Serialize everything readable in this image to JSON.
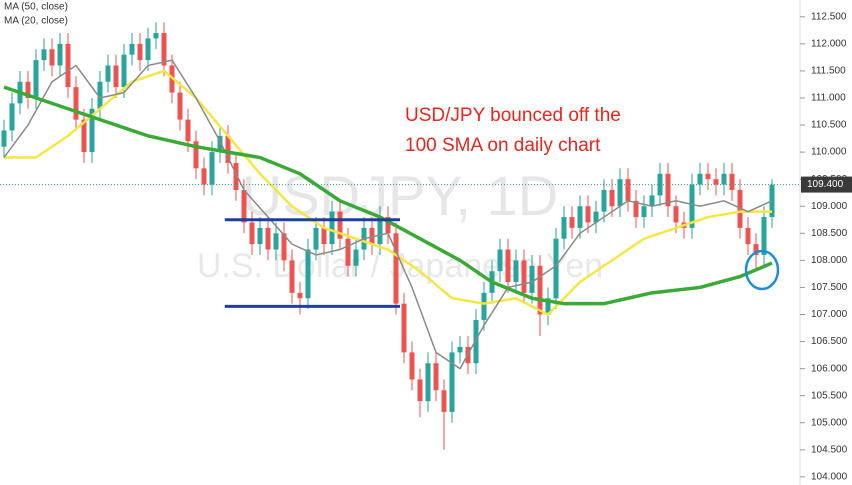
{
  "chart_data": {
    "type": "candlestick",
    "watermark_title": "USDJPY, 1D",
    "watermark_subtitle": "U.S. Dollar / Japanese Yen",
    "annotation": [
      "USD/JPY bounced off the",
      "100 SMA on daily chart"
    ],
    "up_color": "#26a69a",
    "down_color": "#ef5350",
    "xlim": [
      -0.5,
      99.5
    ],
    "ylim": [
      103.85,
      112.81
    ],
    "yticks": [
      {
        "value": 104,
        "label": "104.000"
      },
      {
        "value": 104.5,
        "label": "104.500"
      },
      {
        "value": 105,
        "label": "105.000"
      },
      {
        "value": 105.5,
        "label": "105.500"
      },
      {
        "value": 106,
        "label": "106.000"
      },
      {
        "value": 106.5,
        "label": "106.500"
      },
      {
        "value": 107,
        "label": "107.000"
      },
      {
        "value": 107.5,
        "label": "107.500"
      },
      {
        "value": 108,
        "label": "108.000"
      },
      {
        "value": 108.5,
        "label": "108.500"
      },
      {
        "value": 109,
        "label": "109.000"
      },
      {
        "value": 109.5,
        "label": "109.500"
      },
      {
        "value": 110,
        "label": "110.000"
      },
      {
        "value": 110.5,
        "label": "110.500"
      },
      {
        "value": 111,
        "label": "111.000"
      },
      {
        "value": 111.5,
        "label": "111.500"
      },
      {
        "value": 112,
        "label": "112.000"
      },
      {
        "value": 112.5,
        "label": "112.500"
      }
    ],
    "price_line": 109.4,
    "price_label": "109.400",
    "open": [
      110.1,
      110.4,
      110.9,
      111.3,
      111.0,
      111.7,
      111.9,
      111.6,
      112.0,
      111.2,
      110.6,
      110.0,
      110.8,
      111.3,
      111.6,
      111.2,
      111.8,
      112.0,
      111.7,
      112.1,
      112.2,
      111.6,
      111.1,
      110.6,
      110.2,
      109.7,
      109.4,
      110.0,
      110.3,
      109.8,
      109.3,
      108.7,
      108.3,
      108.6,
      108.2,
      108.5,
      108.0,
      107.4,
      107.3,
      108.2,
      108.6,
      108.3,
      108.9,
      108.4,
      107.9,
      108.2,
      108.6,
      108.3,
      108.8,
      108.5,
      107.2,
      106.3,
      105.8,
      105.4,
      106.1,
      105.6,
      105.2,
      106.3,
      106.4,
      106.1,
      106.9,
      107.4,
      107.8,
      108.2,
      107.6,
      108.0,
      107.4,
      107.9,
      107.0,
      107.3,
      108.4,
      108.8,
      108.6,
      109.0,
      108.7,
      108.9,
      109.3,
      109.0,
      109.5,
      109.1,
      108.8,
      109.0,
      109.2,
      109.6,
      109.0,
      108.7,
      108.6,
      109.4,
      109.6,
      109.5,
      109.4,
      109.6,
      109.3,
      108.6,
      108.3,
      108.1,
      108.8
    ],
    "high": [
      110.6,
      111.1,
      111.5,
      111.5,
      111.9,
      112.1,
      112.1,
      112.2,
      112.2,
      111.4,
      110.8,
      111.0,
      111.5,
      111.8,
      111.8,
      112.0,
      112.2,
      112.2,
      112.3,
      112.4,
      112.4,
      111.8,
      111.3,
      110.8,
      110.4,
      109.9,
      110.2,
      110.5,
      110.5,
      110.0,
      109.5,
      108.9,
      108.8,
      108.8,
      108.7,
      108.7,
      108.2,
      107.6,
      108.4,
      108.8,
      108.8,
      109.1,
      109.1,
      108.6,
      108.4,
      108.8,
      108.8,
      109.0,
      109.0,
      108.7,
      107.4,
      106.5,
      106.0,
      106.3,
      106.3,
      105.8,
      106.5,
      106.6,
      106.6,
      107.1,
      107.6,
      108.0,
      108.4,
      108.4,
      108.2,
      108.2,
      108.1,
      108.1,
      107.5,
      108.6,
      109.0,
      109.0,
      109.2,
      109.2,
      109.1,
      109.5,
      109.5,
      109.7,
      109.7,
      109.3,
      109.2,
      109.4,
      109.8,
      109.8,
      109.2,
      108.9,
      109.6,
      109.8,
      109.8,
      109.7,
      109.8,
      109.8,
      109.5,
      108.8,
      108.5,
      109.0,
      109.5
    ],
    "low": [
      109.9,
      110.2,
      110.7,
      110.8,
      110.8,
      111.5,
      111.4,
      111.4,
      111.0,
      110.4,
      109.8,
      109.8,
      110.6,
      111.1,
      111.0,
      111.0,
      111.6,
      111.5,
      111.5,
      111.9,
      111.4,
      110.9,
      110.4,
      110.0,
      109.5,
      109.2,
      109.2,
      109.8,
      109.6,
      109.1,
      108.5,
      108.1,
      108.1,
      108.0,
      108.0,
      107.8,
      107.2,
      107.0,
      107.1,
      108.0,
      108.1,
      108.1,
      108.2,
      107.7,
      107.7,
      108.0,
      108.1,
      108.1,
      108.3,
      107.0,
      106.1,
      105.6,
      105.1,
      105.2,
      105.4,
      104.5,
      105.0,
      106.1,
      105.9,
      105.9,
      106.7,
      107.2,
      107.6,
      107.4,
      107.4,
      107.2,
      107.2,
      106.6,
      106.8,
      107.1,
      108.2,
      108.4,
      108.4,
      108.5,
      108.5,
      108.7,
      108.8,
      108.8,
      108.9,
      108.6,
      108.6,
      108.8,
      109.0,
      108.8,
      108.5,
      108.4,
      108.4,
      109.2,
      109.3,
      109.2,
      109.2,
      109.1,
      108.4,
      108.1,
      107.8,
      107.9,
      108.6
    ],
    "close": [
      110.4,
      110.9,
      111.3,
      111.0,
      111.7,
      111.9,
      111.6,
      112.0,
      111.2,
      110.6,
      110.0,
      110.8,
      111.3,
      111.6,
      111.2,
      111.8,
      112.0,
      111.7,
      112.1,
      112.2,
      111.6,
      111.1,
      110.6,
      110.2,
      109.7,
      109.4,
      110.0,
      110.3,
      109.8,
      109.3,
      108.7,
      108.3,
      108.6,
      108.2,
      108.5,
      108.0,
      107.4,
      107.3,
      108.2,
      108.6,
      108.3,
      108.9,
      108.4,
      107.9,
      108.2,
      108.6,
      108.3,
      108.8,
      108.5,
      107.2,
      106.3,
      105.8,
      105.4,
      106.1,
      105.6,
      105.2,
      106.3,
      106.4,
      106.1,
      106.9,
      107.4,
      107.8,
      108.2,
      107.6,
      108.0,
      107.4,
      107.9,
      107.0,
      107.3,
      108.4,
      108.8,
      108.6,
      109.0,
      108.7,
      108.9,
      109.3,
      109.0,
      109.5,
      109.1,
      108.8,
      109.0,
      109.2,
      109.6,
      109.0,
      108.7,
      108.6,
      109.4,
      109.6,
      109.5,
      109.4,
      109.6,
      109.3,
      108.6,
      108.3,
      108.1,
      108.8,
      109.4
    ],
    "series": [
      {
        "name": "MA (50, close)",
        "color": "#f5e642",
        "width": 2.5,
        "x": [
          0,
          4,
          8,
          12,
          16,
          20,
          24,
          28,
          32,
          36,
          40,
          44,
          48,
          52,
          56,
          60,
          64,
          68,
          72,
          76,
          80,
          84,
          88,
          92,
          96
        ],
        "values": [
          109.9,
          109.9,
          110.3,
          110.8,
          111.3,
          111.5,
          111.0,
          110.3,
          109.6,
          109.0,
          108.6,
          108.4,
          108.2,
          107.8,
          107.3,
          107.2,
          107.3,
          107.0,
          107.6,
          108.0,
          108.4,
          108.6,
          108.8,
          108.9,
          108.9
        ]
      },
      {
        "name": "MA (20, close)",
        "color": "#8a8a8a",
        "width": 1.5,
        "x": [
          0,
          3,
          6,
          9,
          12,
          15,
          18,
          21,
          24,
          27,
          30,
          33,
          36,
          39,
          42,
          45,
          48,
          51,
          54,
          57,
          60,
          63,
          66,
          69,
          72,
          75,
          78,
          81,
          84,
          87,
          90,
          93,
          96
        ],
        "values": [
          109.9,
          110.5,
          111.3,
          111.6,
          111.0,
          111.1,
          111.6,
          111.7,
          111.0,
          110.2,
          109.3,
          108.8,
          108.3,
          108.1,
          108.2,
          108.4,
          108.5,
          107.5,
          106.3,
          106.0,
          106.8,
          107.5,
          107.6,
          107.9,
          108.5,
          108.8,
          109.1,
          109.0,
          109.1,
          109.0,
          109.1,
          108.9,
          109.1
        ]
      },
      {
        "color": "#3aa935",
        "width": 3.5,
        "x": [
          0,
          6,
          12,
          18,
          24,
          28,
          32,
          37,
          42,
          47,
          52,
          57,
          61,
          66,
          70,
          75,
          81,
          87,
          92,
          96
        ],
        "values": [
          111.2,
          110.9,
          110.6,
          110.3,
          110.1,
          110.0,
          109.9,
          109.6,
          109.1,
          108.8,
          108.4,
          108.0,
          107.6,
          107.3,
          107.2,
          107.2,
          107.4,
          107.5,
          107.7,
          107.95
        ]
      }
    ],
    "levels": [
      {
        "value": 108.75,
        "from": 27.6,
        "to": 49.5,
        "color": "#1f3f9e"
      },
      {
        "value": 107.15,
        "from": 27.6,
        "to": 49.5,
        "color": "#1f3f9e"
      }
    ]
  }
}
